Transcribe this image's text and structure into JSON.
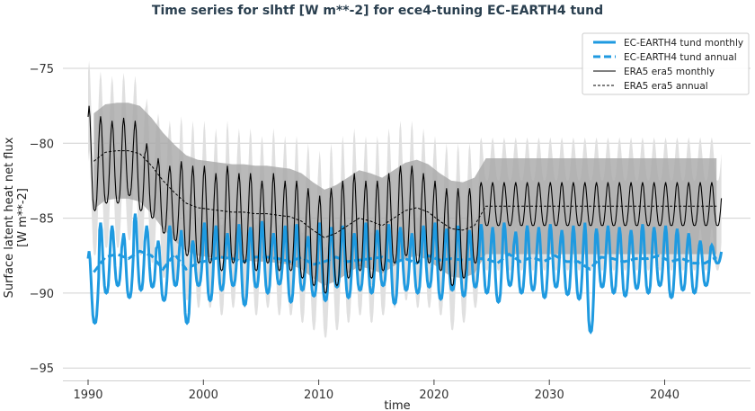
{
  "chart_data": {
    "type": "line",
    "title": "Time series for slhtf [W m**-2] for ece4-tuning EC-EARTH4 tund",
    "xlabel": "time",
    "ylabel": "Surface latent heat net flux\n[W m**-2]",
    "xlim": [
      1989,
      2046
    ],
    "ylim": [
      -95.5,
      -73.5
    ],
    "xticks": [
      1990,
      2000,
      2010,
      2020,
      2030,
      2040
    ],
    "yticks": [
      -75,
      -80,
      -85,
      -90,
      -95
    ],
    "grid": "horizontal",
    "legend_placement": "top-right",
    "years": [
      1990,
      1991,
      1992,
      1993,
      1994,
      1995,
      1996,
      1997,
      1998,
      1999,
      2000,
      2001,
      2002,
      2003,
      2004,
      2005,
      2006,
      2007,
      2008,
      2009,
      2010,
      2011,
      2012,
      2013,
      2014,
      2015,
      2016,
      2017,
      2018,
      2019,
      2020,
      2021,
      2022,
      2023,
      2024,
      2025,
      2026,
      2027,
      2028,
      2029,
      2030,
      2031,
      2032,
      2033,
      2034,
      2035,
      2036,
      2037,
      2038,
      2039,
      2040,
      2041,
      2042,
      2043,
      2044
    ],
    "series": [
      {
        "name": "EC-EARTH4 tund monthly",
        "style": "solid",
        "color": "#1f9ae0",
        "seasonal_max": [
          -87.2,
          -85.3,
          -85.5,
          -86,
          -84.7,
          -85.5,
          -86.5,
          -85.5,
          -85.8,
          -86.5,
          -85.3,
          -85.5,
          -86,
          -85.4,
          -85.6,
          -85.2,
          -86,
          -85.5,
          -85.4,
          -86.2,
          -85.3,
          -85.6,
          -85.5,
          -86,
          -85.3,
          -85.8,
          -85.4,
          -85.6,
          -86,
          -85.5,
          -85.3,
          -85.7,
          -85.5,
          -85.8,
          -85.4,
          -85.6,
          -85.3,
          -85.9,
          -85.5,
          -85.6,
          -85.4,
          -85.8,
          -85.5,
          -85.3,
          -85.7,
          -85.5,
          -85.6,
          -85.8,
          -85.4,
          -85.6,
          -85.5,
          -85.7,
          -86,
          -86.5,
          -86.8
        ],
        "seasonal_min": [
          -92,
          -90,
          -89.5,
          -90.3,
          -89.8,
          -89.6,
          -90.5,
          -89.5,
          -92,
          -89.5,
          -90.5,
          -89.8,
          -89.5,
          -90.8,
          -89.6,
          -90,
          -89.4,
          -90.6,
          -89.8,
          -90.2,
          -90.5,
          -89.6,
          -90.3,
          -89.8,
          -90,
          -89.5,
          -90.7,
          -89.8,
          -90,
          -89.6,
          -90.4,
          -89.8,
          -90.2,
          -89.6,
          -90,
          -90.6,
          -89.5,
          -90,
          -89.8,
          -90.3,
          -89.6,
          -90.1,
          -90.4,
          -92.6,
          -89.6,
          -90,
          -90.2,
          -89.7,
          -90,
          -89.5,
          -90.3,
          -89.8,
          -90,
          -89.5,
          -88
        ],
        "band_std": 0
      },
      {
        "name": "EC-EARTH4 tund annual",
        "style": "dashed",
        "color": "#1f9ae0",
        "values": [
          -88.6,
          -87.6,
          -87.4,
          -87.7,
          -87.2,
          -87.5,
          -88.4,
          -87.4,
          -88.4,
          -88,
          -87.8,
          -87.6,
          -87.7,
          -87.9,
          -87.6,
          -87.6,
          -87.7,
          -87.9,
          -87.6,
          -88.1,
          -87.9,
          -87.6,
          -87.9,
          -87.8,
          -87.7,
          -87.6,
          -88,
          -87.7,
          -88,
          -87.5,
          -87.8,
          -87.7,
          -87.8,
          -87.7,
          -87.7,
          -88,
          -87.4,
          -87.9,
          -87.6,
          -87.9,
          -87.5,
          -87.9,
          -87.9,
          -88.4,
          -87.6,
          -87.7,
          -87.9,
          -87.7,
          -87.7,
          -87.5,
          -87.9,
          -87.7,
          -88,
          -88,
          -87.6
        ]
      },
      {
        "name": "ERA5 era5 monthly",
        "style": "solid",
        "color": "#000000",
        "seasonal_max": [
          -77.5,
          -78.2,
          -78.5,
          -78.3,
          -78.5,
          -80,
          -81,
          -81.5,
          -81.2,
          -81.5,
          -81.5,
          -82,
          -81.5,
          -82,
          -82,
          -82.5,
          -82,
          -82.5,
          -82.5,
          -83,
          -83.5,
          -83,
          -82.5,
          -82,
          -82.5,
          -82.5,
          -82,
          -81.5,
          -81.5,
          -82,
          -82.5,
          -83,
          -83,
          -83,
          -82.6,
          -82.6,
          -82.6,
          -82.6,
          -82.6,
          -82.6,
          -82.6,
          -82.6,
          -82.6,
          -82.6,
          -82.6,
          -82.6,
          -82.6,
          -82.6,
          -82.6,
          -82.6,
          -82.6,
          -82.6,
          -82.6,
          -82.6,
          -82.6
        ],
        "seasonal_min": [
          -84.5,
          -84,
          -84,
          -83.5,
          -84.5,
          -85,
          -86,
          -86.5,
          -87.5,
          -88,
          -88,
          -88.5,
          -88,
          -88,
          -88.5,
          -88,
          -88.5,
          -88.5,
          -89,
          -89.5,
          -90,
          -89.5,
          -89,
          -88.5,
          -89,
          -88.5,
          -88,
          -87.5,
          -88,
          -88,
          -88.5,
          -89.5,
          -89,
          -88,
          -85.5,
          -85.5,
          -85.5,
          -85.5,
          -85.5,
          -85.5,
          -85.5,
          -85.5,
          -85.5,
          -85.5,
          -85.5,
          -85.5,
          -85.5,
          -85.5,
          -85.5,
          -85.5,
          -85.5,
          -85.5,
          -85.5,
          -85.5,
          -85.5
        ],
        "band_std": 3
      },
      {
        "name": "ERA5 era5 annual",
        "style": "dashed",
        "color": "#000000",
        "values": [
          -81.2,
          -80.6,
          -80.5,
          -80.5,
          -80.7,
          -81.5,
          -82.5,
          -83.3,
          -84,
          -84.3,
          -84.4,
          -84.5,
          -84.6,
          -84.6,
          -84.7,
          -84.7,
          -84.8,
          -84.9,
          -85.2,
          -85.8,
          -86.3,
          -86,
          -85.5,
          -85,
          -85.2,
          -85.5,
          -85,
          -84.5,
          -84.3,
          -84.6,
          -85.2,
          -85.7,
          -85.8,
          -85.5,
          -84.2,
          -84.2,
          -84.2,
          -84.2,
          -84.2,
          -84.2,
          -84.2,
          -84.2,
          -84.2,
          -84.2,
          -84.2,
          -84.2,
          -84.2,
          -84.2,
          -84.2,
          -84.2,
          -84.2,
          -84.2,
          -84.2,
          -84.2,
          -84.2
        ],
        "band_std": 3.2
      }
    ]
  }
}
